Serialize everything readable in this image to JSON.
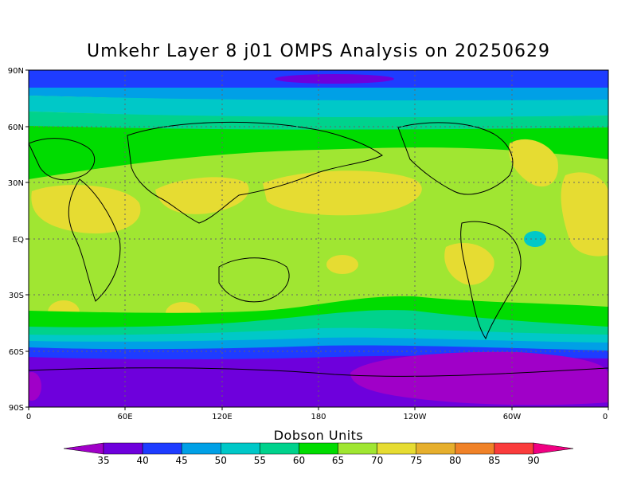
{
  "title": "Umkehr Layer 8 j01 OMPS Analysis on 20250629",
  "lat_labels": [
    "90N",
    "60N",
    "30N",
    "EQ",
    "30S",
    "60S",
    "90S"
  ],
  "lon_labels": [
    "0",
    "60E",
    "120E",
    "180",
    "120W",
    "60W",
    "0"
  ],
  "colorbar": {
    "title": "Dobson Units",
    "ticks": [
      "35",
      "40",
      "45",
      "50",
      "55",
      "60",
      "65",
      "70",
      "75",
      "80",
      "85",
      "90"
    ],
    "colors": [
      "#a000c8",
      "#6e00dc",
      "#1e3cff",
      "#00a0e6",
      "#00c8c8",
      "#00d28c",
      "#00dc00",
      "#a0e632",
      "#e6dc32",
      "#e6af2d",
      "#f08228",
      "#fa3c3c",
      "#f00082"
    ]
  }
}
